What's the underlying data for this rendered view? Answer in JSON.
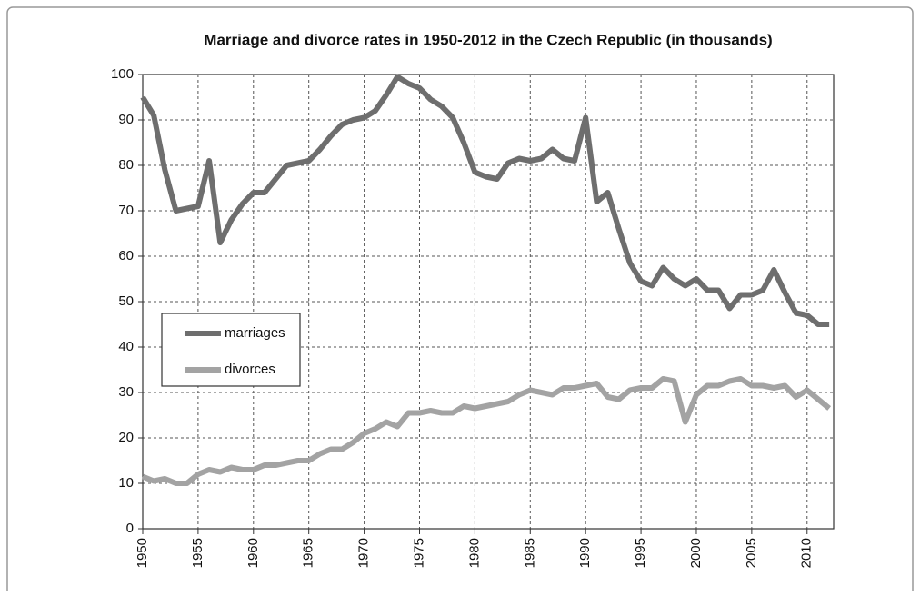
{
  "chart_data": {
    "type": "line",
    "title": "Marriage and divorce rates in 1950-2012 in the Czech Republic (in thousands)",
    "x": [
      1950,
      1951,
      1952,
      1953,
      1954,
      1955,
      1956,
      1957,
      1958,
      1959,
      1960,
      1961,
      1962,
      1963,
      1964,
      1965,
      1966,
      1967,
      1968,
      1969,
      1970,
      1971,
      1972,
      1973,
      1974,
      1975,
      1976,
      1977,
      1978,
      1979,
      1980,
      1981,
      1982,
      1983,
      1984,
      1985,
      1986,
      1987,
      1988,
      1989,
      1990,
      1991,
      1992,
      1993,
      1994,
      1995,
      1996,
      1997,
      1998,
      1999,
      2000,
      2001,
      2002,
      2003,
      2004,
      2005,
      2006,
      2007,
      2008,
      2009,
      2010,
      2011,
      2012
    ],
    "series": [
      {
        "name": "marriages",
        "color": "#6e6e6e",
        "values": [
          95,
          91,
          79,
          70,
          70.5,
          71,
          81,
          63,
          68,
          71.5,
          74,
          74,
          77,
          80,
          80.5,
          81,
          83.5,
          86.5,
          89,
          90,
          90.5,
          92,
          95.5,
          99.5,
          98,
          97,
          94.5,
          93,
          90.5,
          85,
          78.5,
          77.5,
          77,
          80.5,
          81.5,
          81,
          81.5,
          83.5,
          81.5,
          81,
          90.5,
          72,
          74,
          66,
          58.5,
          54.5,
          53.5,
          57.5,
          55,
          53.5,
          55,
          52.5,
          52.5,
          48.5,
          51.5,
          51.5,
          52.5,
          57,
          52,
          47.5,
          47,
          45,
          45
        ]
      },
      {
        "name": "divorces",
        "color": "#a3a3a3",
        "values": [
          11.5,
          10.5,
          11,
          10,
          10,
          12,
          13,
          12.5,
          13.5,
          13,
          13,
          14,
          14,
          14.5,
          15,
          15,
          16.5,
          17.5,
          17.5,
          19,
          21,
          22,
          23.5,
          22.5,
          25.5,
          25.5,
          26,
          25.5,
          25.5,
          27,
          26.5,
          27,
          27.5,
          28,
          29.5,
          30.5,
          30,
          29.5,
          31,
          31,
          31.5,
          32,
          29,
          28.5,
          30.5,
          31,
          31,
          33,
          32.5,
          23.5,
          29.5,
          31.5,
          31.5,
          32.5,
          33,
          31.5,
          31.5,
          31,
          31.5,
          29,
          30.5,
          28.5,
          26.5
        ]
      }
    ],
    "xlim": [
      1950,
      2012.4
    ],
    "xticks": [
      1950,
      1955,
      1960,
      1965,
      1970,
      1975,
      1980,
      1985,
      1990,
      1995,
      2000,
      2005,
      2010
    ],
    "ylim": [
      0,
      100
    ],
    "yticks": [
      0,
      10,
      20,
      30,
      40,
      50,
      60,
      70,
      80,
      90,
      100
    ],
    "grid": true
  }
}
